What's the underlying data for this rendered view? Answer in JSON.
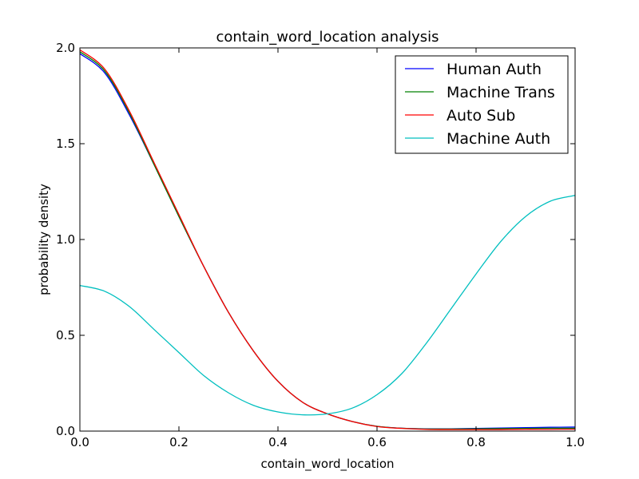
{
  "chart_data": {
    "type": "line",
    "title": "contain_word_location analysis",
    "xlabel": "contain_word_location",
    "ylabel": "probability density",
    "xlim": [
      0.0,
      1.0
    ],
    "ylim": [
      0.0,
      2.0
    ],
    "xticks": [
      0.0,
      0.2,
      0.4,
      0.6,
      0.8,
      1.0
    ],
    "xtick_labels": [
      "0.0",
      "0.2",
      "0.4",
      "0.6",
      "0.8",
      "1.0"
    ],
    "yticks": [
      0.0,
      0.5,
      1.0,
      1.5,
      2.0
    ],
    "ytick_labels": [
      "0.0",
      "0.5",
      "1.0",
      "1.5",
      "2.0"
    ],
    "grid": false,
    "legend_position": "top-right",
    "series": [
      {
        "name": "Human Auth",
        "color": "#0000ff",
        "x": [
          0.0,
          0.05,
          0.1,
          0.15,
          0.2,
          0.25,
          0.3,
          0.35,
          0.4,
          0.45,
          0.5,
          0.55,
          0.6,
          0.65,
          0.7,
          0.75,
          0.8,
          0.85,
          0.9,
          0.95,
          1.0
        ],
        "y": [
          1.97,
          1.87,
          1.65,
          1.39,
          1.12,
          0.86,
          0.62,
          0.42,
          0.26,
          0.15,
          0.09,
          0.05,
          0.025,
          0.015,
          0.012,
          0.012,
          0.014,
          0.016,
          0.018,
          0.02,
          0.021
        ]
      },
      {
        "name": "Machine Trans",
        "color": "#008000",
        "x": [
          0.0,
          0.05,
          0.1,
          0.15,
          0.2,
          0.25,
          0.3,
          0.35,
          0.4,
          0.45,
          0.5,
          0.55,
          0.6,
          0.65,
          0.7,
          0.75,
          0.8,
          0.85,
          0.9,
          0.95,
          1.0
        ],
        "y": [
          1.98,
          1.88,
          1.66,
          1.39,
          1.12,
          0.86,
          0.62,
          0.42,
          0.26,
          0.15,
          0.09,
          0.05,
          0.025,
          0.015,
          0.011,
          0.011,
          0.012,
          0.013,
          0.014,
          0.015,
          0.015
        ]
      },
      {
        "name": "Auto Sub",
        "color": "#ff0000",
        "x": [
          0.0,
          0.05,
          0.1,
          0.15,
          0.2,
          0.25,
          0.3,
          0.35,
          0.4,
          0.45,
          0.5,
          0.55,
          0.6,
          0.65,
          0.7,
          0.75,
          0.8,
          0.85,
          0.9,
          0.95,
          1.0
        ],
        "y": [
          1.99,
          1.89,
          1.67,
          1.4,
          1.13,
          0.86,
          0.62,
          0.42,
          0.26,
          0.15,
          0.09,
          0.05,
          0.024,
          0.014,
          0.009,
          0.008,
          0.008,
          0.008,
          0.009,
          0.009,
          0.01
        ]
      },
      {
        "name": "Machine Auth",
        "color": "#00bfbf",
        "x": [
          0.0,
          0.05,
          0.1,
          0.15,
          0.2,
          0.25,
          0.3,
          0.35,
          0.4,
          0.45,
          0.5,
          0.55,
          0.6,
          0.65,
          0.7,
          0.75,
          0.8,
          0.85,
          0.9,
          0.95,
          1.0
        ],
        "y": [
          0.76,
          0.73,
          0.65,
          0.53,
          0.41,
          0.29,
          0.2,
          0.135,
          0.1,
          0.085,
          0.09,
          0.12,
          0.19,
          0.3,
          0.46,
          0.64,
          0.82,
          0.99,
          1.12,
          1.2,
          1.23
        ]
      }
    ]
  }
}
